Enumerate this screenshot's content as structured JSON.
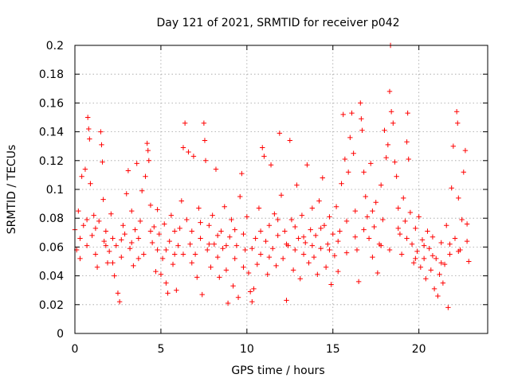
{
  "chart_data": {
    "type": "scatter",
    "title": "Day 121 of 2021, SRMTID for receiver p042",
    "xlabel": "GPS time / hours",
    "ylabel": "SRMTID / TECUs",
    "xlim": [
      0,
      24
    ],
    "ylim": [
      0,
      0.2
    ],
    "xticks": [
      0,
      5,
      10,
      15,
      20
    ],
    "xtick_labels": [
      "0",
      "5",
      "10",
      "15",
      "20"
    ],
    "yticks": [
      0,
      0.02,
      0.04,
      0.06,
      0.08,
      0.1,
      0.12,
      0.14,
      0.16,
      0.18,
      0.2
    ],
    "ytick_labels": [
      "0",
      "0.02",
      "0.04",
      "0.06",
      "0.08",
      "0.1",
      "0.12",
      "0.14",
      "0.16",
      "0.18",
      "0.2"
    ],
    "grid": true,
    "marker": "+",
    "color": "#ff0000",
    "series": [
      {
        "name": "SRMTID",
        "points": [
          [
            0.0,
            0.072
          ],
          [
            0.1,
            0.058
          ],
          [
            0.2,
            0.085
          ],
          [
            0.3,
            0.066
          ],
          [
            0.4,
            0.109
          ],
          [
            0.5,
            0.075
          ],
          [
            0.6,
            0.114
          ],
          [
            0.7,
            0.061
          ],
          [
            0.75,
            0.15
          ],
          [
            0.8,
            0.142
          ],
          [
            0.85,
            0.135
          ],
          [
            0.9,
            0.104
          ],
          [
            1.0,
            0.068
          ],
          [
            1.1,
            0.082
          ],
          [
            1.2,
            0.055
          ],
          [
            1.3,
            0.046
          ],
          [
            1.4,
            0.078
          ],
          [
            1.5,
            0.14
          ],
          [
            1.55,
            0.131
          ],
          [
            1.6,
            0.119
          ],
          [
            1.65,
            0.093
          ],
          [
            1.7,
            0.064
          ],
          [
            1.8,
            0.071
          ],
          [
            1.9,
            0.049
          ],
          [
            2.0,
            0.057
          ],
          [
            2.1,
            0.083
          ],
          [
            2.2,
            0.066
          ],
          [
            2.3,
            0.04
          ],
          [
            2.4,
            0.061
          ],
          [
            2.5,
            0.028
          ],
          [
            2.6,
            0.022
          ],
          [
            2.7,
            0.053
          ],
          [
            2.8,
            0.075
          ],
          [
            2.9,
            0.069
          ],
          [
            3.0,
            0.097
          ],
          [
            3.1,
            0.113
          ],
          [
            3.2,
            0.059
          ],
          [
            3.3,
            0.085
          ],
          [
            3.4,
            0.047
          ],
          [
            3.5,
            0.072
          ],
          [
            3.6,
            0.118
          ],
          [
            3.7,
            0.066
          ],
          [
            3.8,
            0.078
          ],
          [
            3.9,
            0.099
          ],
          [
            4.0,
            0.055
          ],
          [
            4.1,
            0.109
          ],
          [
            4.2,
            0.132
          ],
          [
            4.25,
            0.127
          ],
          [
            4.3,
            0.12
          ],
          [
            4.4,
            0.089
          ],
          [
            4.5,
            0.063
          ],
          [
            4.6,
            0.074
          ],
          [
            4.7,
            0.043
          ],
          [
            4.8,
            0.058
          ],
          [
            4.9,
            0.069
          ],
          [
            5.0,
            0.041
          ],
          [
            5.1,
            0.052
          ],
          [
            5.2,
            0.076
          ],
          [
            5.3,
            0.035
          ],
          [
            5.4,
            0.028
          ],
          [
            5.5,
            0.064
          ],
          [
            5.6,
            0.082
          ],
          [
            5.7,
            0.048
          ],
          [
            5.8,
            0.055
          ],
          [
            5.9,
            0.03
          ],
          [
            6.0,
            0.061
          ],
          [
            6.1,
            0.073
          ],
          [
            6.2,
            0.092
          ],
          [
            6.3,
            0.129
          ],
          [
            6.4,
            0.146
          ],
          [
            6.5,
            0.079
          ],
          [
            6.6,
            0.126
          ],
          [
            6.7,
            0.062
          ],
          [
            6.8,
            0.071
          ],
          [
            6.9,
            0.123
          ],
          [
            7.0,
            0.055
          ],
          [
            7.1,
            0.039
          ],
          [
            7.2,
            0.087
          ],
          [
            7.3,
            0.066
          ],
          [
            7.4,
            0.027
          ],
          [
            7.5,
            0.146
          ],
          [
            7.55,
            0.134
          ],
          [
            7.6,
            0.12
          ],
          [
            7.7,
            0.058
          ],
          [
            7.8,
            0.075
          ],
          [
            7.9,
            0.046
          ],
          [
            8.0,
            0.082
          ],
          [
            8.1,
            0.062
          ],
          [
            8.2,
            0.114
          ],
          [
            8.3,
            0.053
          ],
          [
            8.4,
            0.039
          ],
          [
            8.5,
            0.071
          ],
          [
            8.6,
            0.059
          ],
          [
            8.7,
            0.088
          ],
          [
            8.8,
            0.044
          ],
          [
            8.9,
            0.021
          ],
          [
            9.0,
            0.067
          ],
          [
            9.1,
            0.079
          ],
          [
            9.2,
            0.033
          ],
          [
            9.3,
            0.052
          ],
          [
            9.4,
            0.061
          ],
          [
            9.5,
            0.025
          ],
          [
            9.6,
            0.095
          ],
          [
            9.7,
            0.111
          ],
          [
            9.8,
            0.069
          ],
          [
            9.9,
            0.058
          ],
          [
            10.0,
            0.081
          ],
          [
            10.1,
            0.042
          ],
          [
            10.2,
            0.029
          ],
          [
            10.3,
            0.022
          ],
          [
            10.4,
            0.031
          ],
          [
            10.5,
            0.066
          ],
          [
            10.6,
            0.048
          ],
          [
            10.7,
            0.087
          ],
          [
            10.8,
            0.055
          ],
          [
            10.9,
            0.129
          ],
          [
            11.0,
            0.123
          ],
          [
            11.1,
            0.064
          ],
          [
            11.2,
            0.041
          ],
          [
            11.3,
            0.075
          ],
          [
            11.4,
            0.117
          ],
          [
            11.5,
            0.059
          ],
          [
            11.6,
            0.083
          ],
          [
            11.7,
            0.047
          ],
          [
            11.8,
            0.068
          ],
          [
            11.9,
            0.139
          ],
          [
            12.0,
            0.096
          ],
          [
            12.1,
            0.052
          ],
          [
            12.2,
            0.071
          ],
          [
            12.3,
            0.023
          ],
          [
            12.4,
            0.061
          ],
          [
            12.5,
            0.134
          ],
          [
            12.6,
            0.079
          ],
          [
            12.7,
            0.044
          ],
          [
            12.8,
            0.058
          ],
          [
            12.9,
            0.103
          ],
          [
            13.0,
            0.066
          ],
          [
            13.1,
            0.038
          ],
          [
            13.2,
            0.082
          ],
          [
            13.3,
            0.055
          ],
          [
            13.4,
            0.063
          ],
          [
            13.5,
            0.117
          ],
          [
            13.6,
            0.049
          ],
          [
            13.7,
            0.072
          ],
          [
            13.8,
            0.087
          ],
          [
            13.9,
            0.053
          ],
          [
            14.0,
            0.068
          ],
          [
            14.1,
            0.041
          ],
          [
            14.2,
            0.092
          ],
          [
            14.3,
            0.059
          ],
          [
            14.4,
            0.108
          ],
          [
            14.5,
            0.075
          ],
          [
            14.6,
            0.046
          ],
          [
            14.7,
            0.062
          ],
          [
            14.8,
            0.081
          ],
          [
            14.9,
            0.034
          ],
          [
            15.0,
            0.069
          ],
          [
            15.1,
            0.054
          ],
          [
            15.2,
            0.088
          ],
          [
            15.3,
            0.043
          ],
          [
            15.4,
            0.071
          ],
          [
            15.5,
            0.104
          ],
          [
            15.6,
            0.152
          ],
          [
            15.7,
            0.121
          ],
          [
            15.8,
            0.078
          ],
          [
            15.9,
            0.112
          ],
          [
            16.0,
            0.136
          ],
          [
            16.1,
            0.153
          ],
          [
            16.2,
            0.125
          ],
          [
            16.3,
            0.085
          ],
          [
            16.4,
            0.058
          ],
          [
            16.5,
            0.036
          ],
          [
            16.6,
            0.16
          ],
          [
            16.65,
            0.149
          ],
          [
            16.7,
            0.141
          ],
          [
            16.8,
            0.112
          ],
          [
            16.9,
            0.095
          ],
          [
            17.0,
            0.081
          ],
          [
            17.1,
            0.066
          ],
          [
            17.2,
            0.118
          ],
          [
            17.3,
            0.053
          ],
          [
            17.4,
            0.074
          ],
          [
            17.5,
            0.091
          ],
          [
            17.6,
            0.042
          ],
          [
            17.7,
            0.062
          ],
          [
            17.8,
            0.103
          ],
          [
            17.9,
            0.079
          ],
          [
            18.0,
            0.141
          ],
          [
            18.1,
            0.122
          ],
          [
            18.2,
            0.131
          ],
          [
            18.3,
            0.168
          ],
          [
            18.35,
            0.2
          ],
          [
            18.4,
            0.154
          ],
          [
            18.5,
            0.146
          ],
          [
            18.6,
            0.119
          ],
          [
            18.7,
            0.109
          ],
          [
            18.8,
            0.087
          ],
          [
            18.9,
            0.069
          ],
          [
            19.0,
            0.055
          ],
          [
            19.1,
            0.094
          ],
          [
            19.2,
            0.078
          ],
          [
            19.3,
            0.133
          ],
          [
            19.35,
            0.153
          ],
          [
            19.4,
            0.121
          ],
          [
            19.5,
            0.084
          ],
          [
            19.6,
            0.062
          ],
          [
            19.7,
            0.049
          ],
          [
            19.8,
            0.073
          ],
          [
            19.9,
            0.057
          ],
          [
            20.0,
            0.081
          ],
          [
            20.1,
            0.046
          ],
          [
            20.2,
            0.065
          ],
          [
            20.3,
            0.052
          ],
          [
            20.4,
            0.038
          ],
          [
            20.5,
            0.071
          ],
          [
            20.6,
            0.059
          ],
          [
            20.7,
            0.044
          ],
          [
            20.8,
            0.067
          ],
          [
            20.9,
            0.031
          ],
          [
            21.0,
            0.052
          ],
          [
            21.1,
            0.026
          ],
          [
            21.2,
            0.041
          ],
          [
            21.3,
            0.063
          ],
          [
            21.4,
            0.035
          ],
          [
            21.5,
            0.048
          ],
          [
            21.6,
            0.075
          ],
          [
            21.7,
            0.018
          ],
          [
            21.8,
            0.055
          ],
          [
            21.9,
            0.101
          ],
          [
            22.0,
            0.13
          ],
          [
            22.1,
            0.066
          ],
          [
            22.2,
            0.154
          ],
          [
            22.25,
            0.146
          ],
          [
            22.3,
            0.094
          ],
          [
            22.4,
            0.058
          ],
          [
            22.5,
            0.079
          ],
          [
            22.6,
            0.112
          ],
          [
            22.7,
            0.127
          ],
          [
            22.8,
            0.064
          ],
          [
            22.9,
            0.05
          ],
          [
            0.3,
            0.052
          ],
          [
            0.7,
            0.079
          ],
          [
            1.2,
            0.073
          ],
          [
            1.8,
            0.061
          ],
          [
            2.2,
            0.049
          ],
          [
            2.7,
            0.065
          ],
          [
            3.3,
            0.063
          ],
          [
            3.7,
            0.052
          ],
          [
            4.4,
            0.071
          ],
          [
            4.8,
            0.086
          ],
          [
            5.3,
            0.058
          ],
          [
            5.8,
            0.071
          ],
          [
            6.3,
            0.055
          ],
          [
            6.8,
            0.049
          ],
          [
            7.3,
            0.077
          ],
          [
            7.8,
            0.062
          ],
          [
            8.3,
            0.068
          ],
          [
            8.8,
            0.061
          ],
          [
            9.3,
            0.072
          ],
          [
            9.8,
            0.046
          ],
          [
            10.3,
            0.059
          ],
          [
            10.8,
            0.071
          ],
          [
            11.3,
            0.053
          ],
          [
            11.8,
            0.079
          ],
          [
            12.3,
            0.062
          ],
          [
            12.8,
            0.074
          ],
          [
            13.3,
            0.067
          ],
          [
            13.8,
            0.061
          ],
          [
            14.3,
            0.073
          ],
          [
            14.8,
            0.058
          ],
          [
            15.3,
            0.064
          ],
          [
            15.8,
            0.056
          ],
          [
            16.3,
            0.067
          ],
          [
            16.8,
            0.072
          ],
          [
            17.3,
            0.085
          ],
          [
            17.8,
            0.061
          ],
          [
            18.3,
            0.058
          ],
          [
            18.8,
            0.073
          ],
          [
            19.3,
            0.066
          ],
          [
            19.8,
            0.052
          ],
          [
            20.3,
            0.061
          ],
          [
            20.8,
            0.054
          ],
          [
            21.3,
            0.049
          ],
          [
            21.8,
            0.062
          ],
          [
            22.3,
            0.057
          ],
          [
            22.8,
            0.076
          ]
        ]
      }
    ]
  }
}
